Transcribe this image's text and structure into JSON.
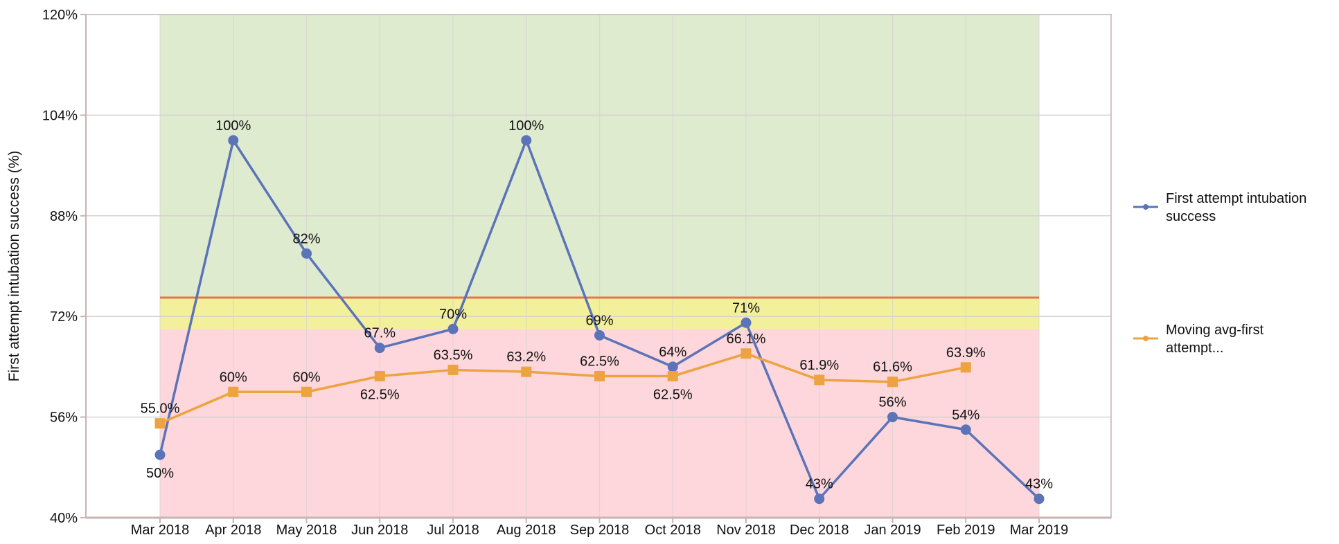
{
  "chart_data": {
    "type": "line",
    "title": "",
    "xlabel": "",
    "ylabel": "First attempt intubation success (%)",
    "ylim": [
      40,
      120
    ],
    "yticks": [
      40,
      56,
      72,
      88,
      104,
      120
    ],
    "ytick_labels": [
      "40%",
      "56%",
      "72%",
      "88%",
      "104%",
      "120%"
    ],
    "grid": true,
    "categories": [
      "Mar 2018",
      "Apr 2018",
      "May 2018",
      "Jun 2018",
      "Jul 2018",
      "Aug 2018",
      "Sep 2018",
      "Oct 2018",
      "Nov 2018",
      "Dec 2018",
      "Jan 2019",
      "Feb 2019",
      "Mar 2019"
    ],
    "bands": [
      {
        "from": 40,
        "to": 70,
        "color": "#fdd7dc"
      },
      {
        "from": 70,
        "to": 75,
        "color": "#f2f09a"
      },
      {
        "from": 75,
        "to": 120,
        "color": "#deebcf"
      }
    ],
    "threshold_line": {
      "value": 75,
      "color": "#e8734a"
    },
    "series": [
      {
        "name": "First attempt intubation success",
        "color": "#5b73b8",
        "marker": "circle",
        "values": [
          50,
          100,
          82,
          67,
          70,
          100,
          69,
          64,
          71,
          43,
          56,
          54,
          43
        ],
        "labels": [
          "50%",
          "100%",
          "82%",
          "67.%",
          "70%",
          "100%",
          "69%",
          "64%",
          "71%",
          "43%",
          "56%",
          "54%",
          "43%"
        ]
      },
      {
        "name": "Moving avg-first attempt...",
        "color": "#eda33f",
        "marker": "square",
        "values": [
          55.0,
          60,
          60,
          62.5,
          63.5,
          63.2,
          62.5,
          62.5,
          66.1,
          61.9,
          61.6,
          63.9,
          null
        ],
        "labels": [
          "55.0%",
          "60%",
          "60%",
          "62.5%",
          "63.5%",
          "63.2%",
          "62.5%",
          "62.5%",
          "66.1%",
          "61.9%",
          "61.6%",
          "63.9%",
          ""
        ]
      }
    ],
    "legend_position": "right",
    "legend": [
      {
        "lines": [
          "First attempt intubation",
          "success"
        ]
      },
      {
        "lines": [
          "Moving avg-first",
          "attempt..."
        ]
      }
    ]
  }
}
